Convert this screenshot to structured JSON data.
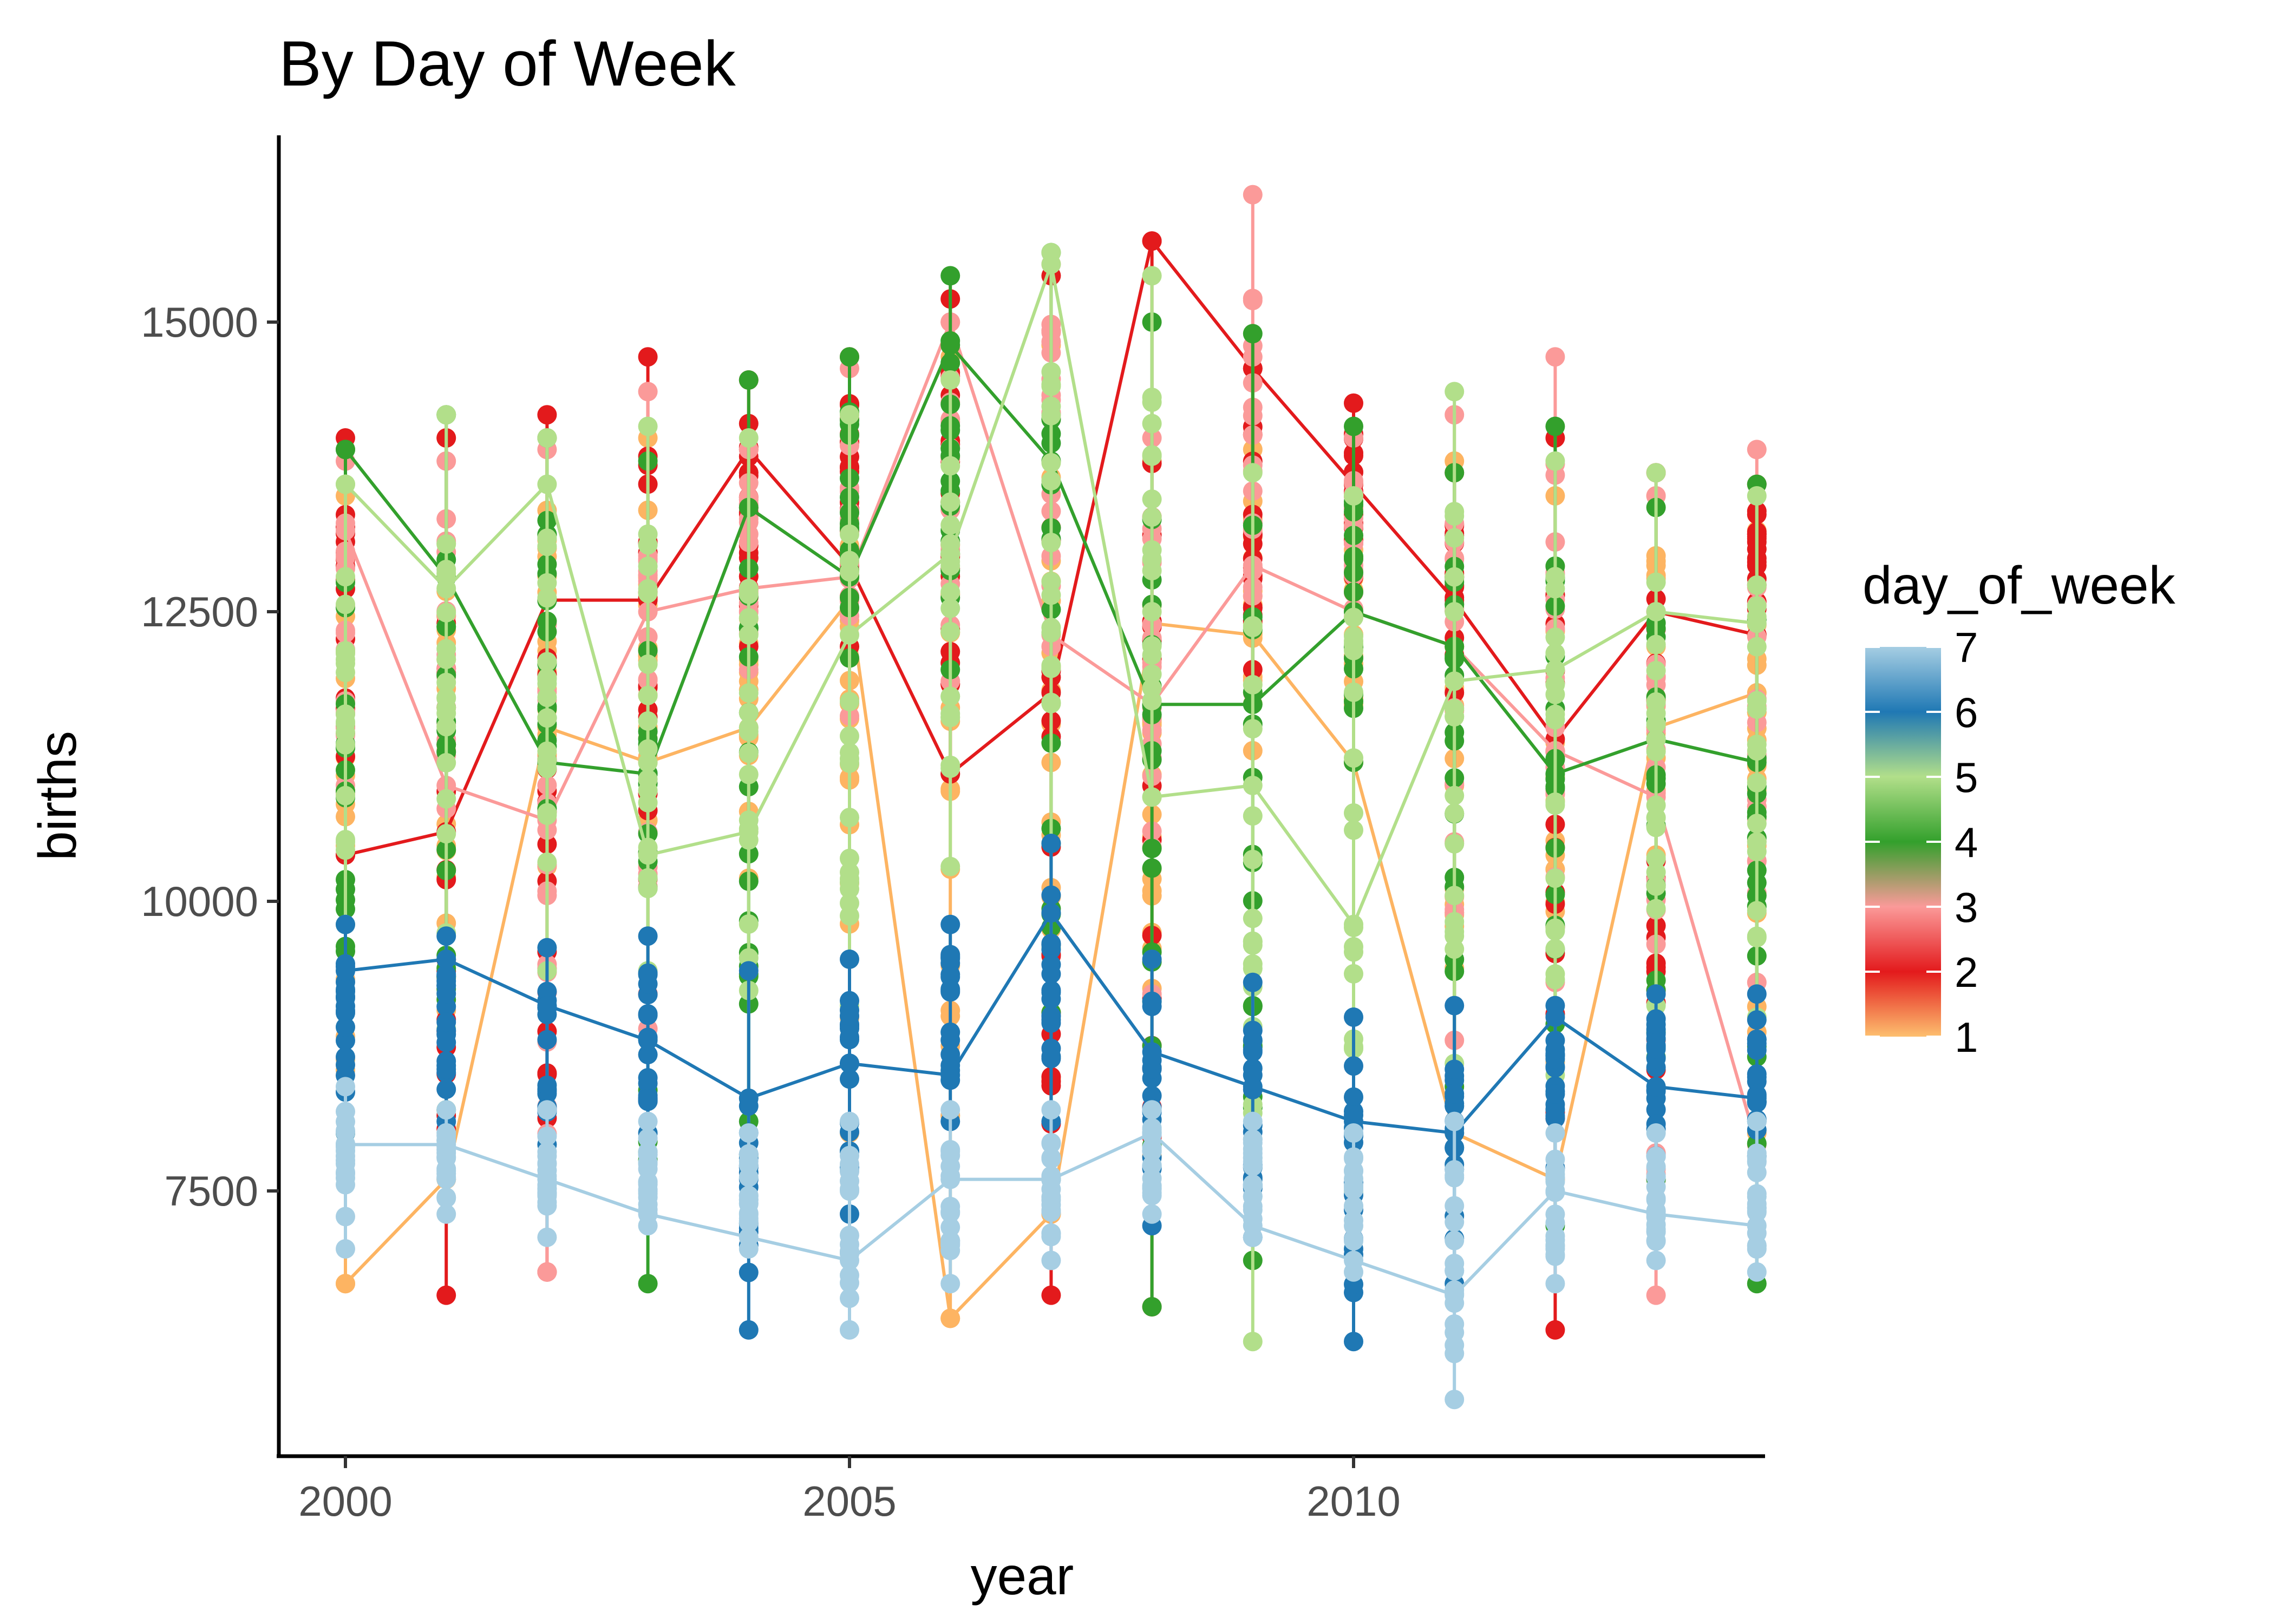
{
  "chart_data": {
    "type": "line",
    "title": "By Day of Week",
    "xlabel": "year",
    "ylabel": "births",
    "xlim": [
      1999.3,
      2014.7
    ],
    "ylim": [
      5500,
      16600
    ],
    "xticks": [
      2000,
      2005,
      2010
    ],
    "xtick_labels": [
      "2000",
      "2005",
      "2010"
    ],
    "yticks": [
      7500,
      10000,
      12500,
      15000
    ],
    "ytick_labels": [
      "7500",
      "10000",
      "12500",
      "15000"
    ],
    "grid": false,
    "legend": {
      "title": "day_of_week",
      "position": "right",
      "type": "continuous colorbar",
      "labels": [
        "7",
        "6",
        "5",
        "4",
        "3",
        "2",
        "1"
      ],
      "colors": [
        "#a6cee3",
        "#1f78b4",
        "#b2df8a",
        "#33a02c",
        "#fb9a99",
        "#e31a1c",
        "#fdbf6f"
      ]
    },
    "series": [
      {
        "day": 1,
        "color": "#fdb462",
        "x": [
          2000,
          2001,
          2002,
          2003,
          2004,
          2005,
          2006,
          2007,
          2008,
          2009,
          2010,
          2011,
          2012,
          2013,
          2014
        ],
        "y": [
          6700,
          7600,
          11500,
          11200,
          11500,
          12600,
          6400,
          7300,
          12400,
          12300,
          11200,
          8000,
          7600,
          11500,
          11800
        ],
        "range": [
          [
            6700,
            13500
          ],
          [
            7600,
            14000
          ],
          [
            10300,
            14000
          ],
          [
            10700,
            14000
          ],
          [
            10200,
            13700
          ],
          [
            8000,
            14200
          ],
          [
            6400,
            14700
          ],
          [
            7300,
            14800
          ],
          [
            7800,
            13800
          ],
          [
            11300,
            13900
          ],
          [
            11200,
            13500
          ],
          [
            8000,
            13800
          ],
          [
            7600,
            13500
          ],
          [
            10400,
            13500
          ],
          [
            8000,
            13200
          ]
        ]
      },
      {
        "day": 2,
        "color": "#e31a1c",
        "x": [
          2000,
          2001,
          2002,
          2003,
          2004,
          2005,
          2006,
          2007,
          2008,
          2009,
          2010,
          2011,
          2012,
          2013,
          2014
        ],
        "y": [
          10400,
          10600,
          12600,
          12600,
          13900,
          12900,
          11100,
          11800,
          15700,
          14600,
          13600,
          12600,
          11400,
          12500,
          12300
        ],
        "range": [
          [
            10400,
            14000
          ],
          [
            6600,
            14000
          ],
          [
            6800,
            14200
          ],
          [
            9200,
            14700
          ],
          [
            12200,
            14500
          ],
          [
            12200,
            14700
          ],
          [
            11100,
            15200
          ],
          [
            6600,
            15400
          ],
          [
            6500,
            15700
          ],
          [
            12000,
            14600
          ],
          [
            12800,
            14300
          ],
          [
            11800,
            13700
          ],
          [
            6300,
            14000
          ],
          [
            7600,
            13700
          ],
          [
            12300,
            13600
          ]
        ]
      },
      {
        "day": 3,
        "color": "#fb9a99",
        "x": [
          2000,
          2001,
          2002,
          2003,
          2004,
          2005,
          2006,
          2007,
          2008,
          2009,
          2010,
          2011,
          2012,
          2013,
          2014
        ],
        "y": [
          13200,
          11000,
          10700,
          12500,
          12700,
          12800,
          15000,
          12300,
          11700,
          12900,
          12500,
          12200,
          11300,
          10900,
          7900
        ],
        "range": [
          [
            11000,
            13800
          ],
          [
            10800,
            13800
          ],
          [
            6800,
            13900
          ],
          [
            8900,
            14400
          ],
          [
            12000,
            13900
          ],
          [
            11600,
            14600
          ],
          [
            11900,
            15000
          ],
          [
            12200,
            15500
          ],
          [
            9200,
            14000
          ],
          [
            11800,
            16100
          ],
          [
            12100,
            14000
          ],
          [
            8800,
            14200
          ],
          [
            9300,
            14700
          ],
          [
            6600,
            13500
          ],
          [
            9300,
            13900
          ]
        ]
      },
      {
        "day": 4,
        "color": "#33a02c",
        "x": [
          2000,
          2001,
          2002,
          2003,
          2004,
          2005,
          2006,
          2007,
          2008,
          2009,
          2010,
          2011,
          2012,
          2013,
          2014
        ],
        "y": [
          13900,
          12800,
          11200,
          11100,
          13400,
          12800,
          14800,
          13800,
          11700,
          11700,
          12500,
          12200,
          11100,
          11400,
          11200
        ],
        "range": [
          [
            8000,
            13900
          ],
          [
            8200,
            14200
          ],
          [
            10800,
            14000
          ],
          [
            6700,
            13800
          ],
          [
            8100,
            14500
          ],
          [
            12100,
            14700
          ],
          [
            12000,
            15400
          ],
          [
            7600,
            15600
          ],
          [
            6500,
            15000
          ],
          [
            6900,
            14900
          ],
          [
            11200,
            14100
          ],
          [
            8400,
            13700
          ],
          [
            7200,
            14100
          ],
          [
            7600,
            13400
          ],
          [
            6700,
            13600
          ]
        ]
      },
      {
        "day": 5,
        "color": "#b2df8a",
        "x": [
          2000,
          2001,
          2002,
          2003,
          2004,
          2005,
          2006,
          2007,
          2008,
          2009,
          2010,
          2011,
          2012,
          2013,
          2014
        ],
        "y": [
          13600,
          12700,
          13600,
          10400,
          10600,
          12300,
          13000,
          15500,
          10900,
          11000,
          9800,
          11900,
          12000,
          12500,
          12400
        ],
        "range": [
          [
            9800,
            13600
          ],
          [
            8900,
            14200
          ],
          [
            9400,
            14000
          ],
          [
            9400,
            14100
          ],
          [
            7800,
            14000
          ],
          [
            9100,
            14200
          ],
          [
            10300,
            14500
          ],
          [
            9600,
            15600
          ],
          [
            10900,
            15400
          ],
          [
            6200,
            13700
          ],
          [
            7500,
            13500
          ],
          [
            8600,
            14400
          ],
          [
            8500,
            13800
          ],
          [
            9100,
            13700
          ],
          [
            9000,
            13500
          ]
        ]
      },
      {
        "day": 6,
        "color": "#1f78b4",
        "x": [
          2000,
          2001,
          2002,
          2003,
          2004,
          2005,
          2006,
          2007,
          2008,
          2009,
          2010,
          2011,
          2012,
          2013,
          2014
        ],
        "y": [
          9400,
          9500,
          9100,
          8800,
          8300,
          8600,
          8500,
          9900,
          8700,
          8400,
          8100,
          8000,
          9000,
          8400,
          8300
        ],
        "range": [
          [
            8000,
            9800
          ],
          [
            8100,
            9700
          ],
          [
            7900,
            9600
          ],
          [
            8000,
            9700
          ],
          [
            6300,
            9400
          ],
          [
            7300,
            9500
          ],
          [
            8100,
            9800
          ],
          [
            8100,
            10500
          ],
          [
            7200,
            9500
          ],
          [
            7100,
            9300
          ],
          [
            6200,
            9000
          ],
          [
            6700,
            9100
          ],
          [
            7700,
            9100
          ],
          [
            7800,
            9200
          ],
          [
            7800,
            9200
          ]
        ]
      },
      {
        "day": 7,
        "color": "#a6cee3",
        "x": [
          2000,
          2001,
          2002,
          2003,
          2004,
          2005,
          2006,
          2007,
          2008,
          2009,
          2010,
          2011,
          2012,
          2013,
          2014
        ],
        "y": [
          7900,
          7900,
          7600,
          7300,
          7100,
          6900,
          7600,
          7600,
          8000,
          7200,
          6900,
          6600,
          7500,
          7300,
          7200
        ],
        "range": [
          [
            7000,
            8400
          ],
          [
            7300,
            8200
          ],
          [
            7100,
            8200
          ],
          [
            7200,
            8100
          ],
          [
            7000,
            8000
          ],
          [
            6300,
            8100
          ],
          [
            6700,
            8200
          ],
          [
            6900,
            8200
          ],
          [
            7300,
            8200
          ],
          [
            7100,
            8100
          ],
          [
            6800,
            8000
          ],
          [
            5700,
            8100
          ],
          [
            6700,
            8000
          ],
          [
            6900,
            8000
          ],
          [
            6800,
            8100
          ]
        ]
      }
    ]
  }
}
